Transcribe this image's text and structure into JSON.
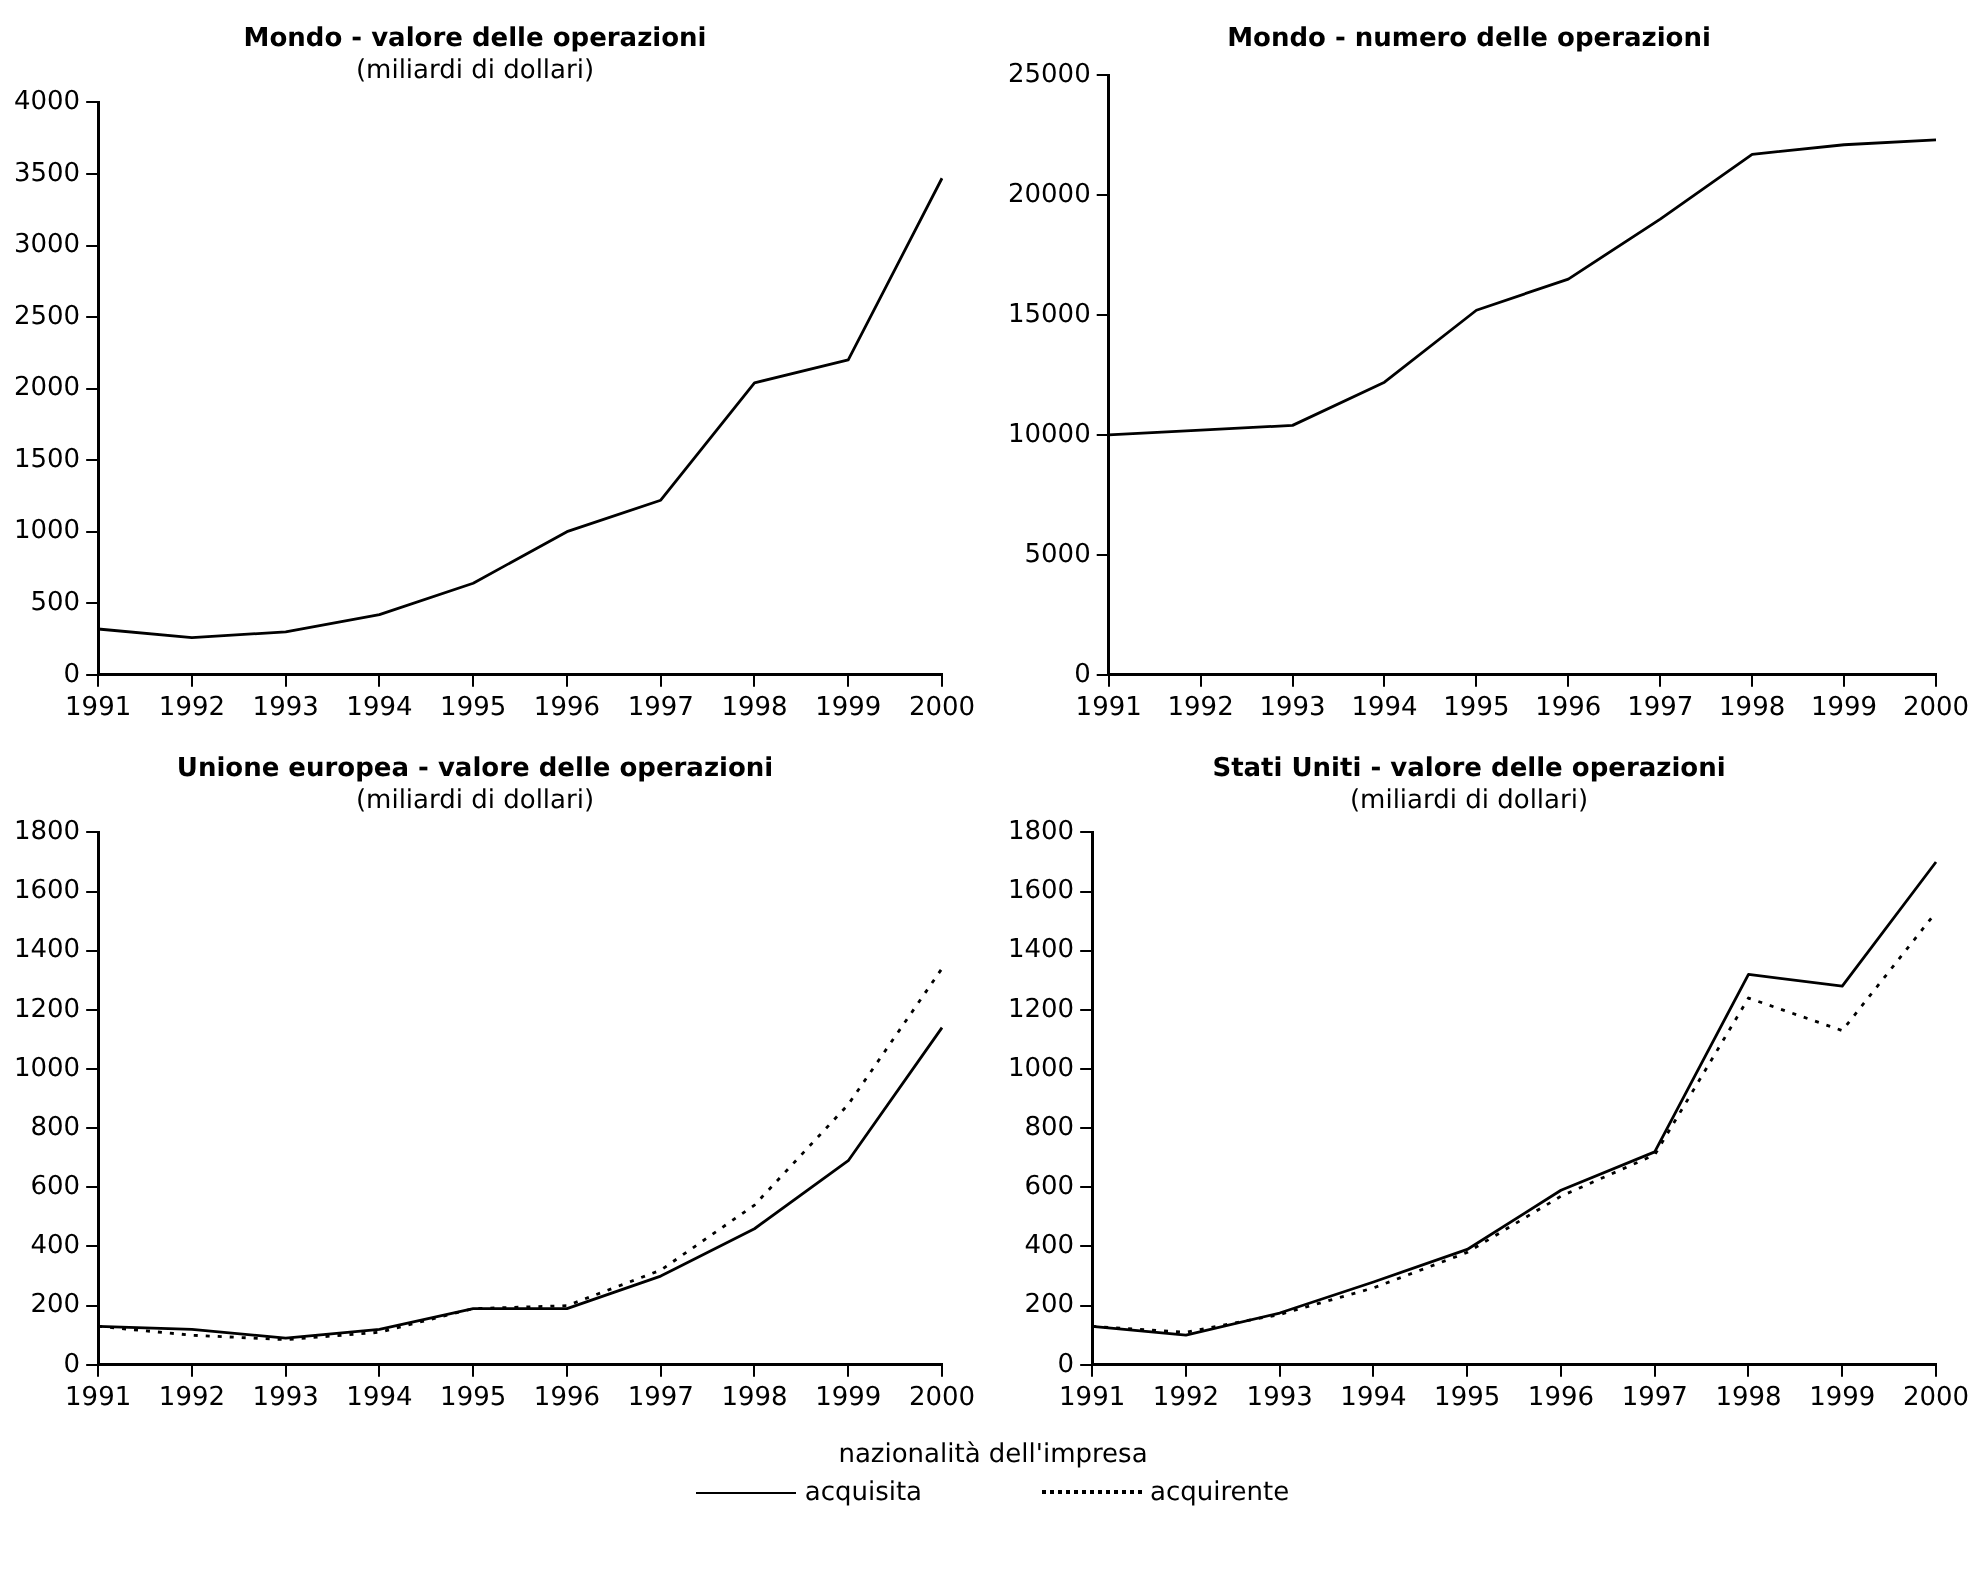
{
  "chart_data": [
    {
      "type": "line",
      "title": "Mondo - valore delle operazioni",
      "subtitle": "(miliardi di dollari)",
      "categories": [
        "1991",
        "1992",
        "1993",
        "1994",
        "1995",
        "1996",
        "1997",
        "1998",
        "1999",
        "2000"
      ],
      "series": [
        {
          "color": "#000000",
          "values": [
            320,
            260,
            300,
            420,
            640,
            1000,
            1220,
            2040,
            2200,
            3470
          ]
        }
      ],
      "ylim": [
        0,
        4000
      ],
      "yticks": [
        0,
        500,
        1000,
        1500,
        2000,
        2500,
        3000,
        3500,
        4000
      ],
      "grid": false,
      "legend": false,
      "marker": "none",
      "line_style": "solid"
    },
    {
      "type": "line",
      "title": "Mondo - numero delle operazioni",
      "categories": [
        "1991",
        "1992",
        "1993",
        "1994",
        "1995",
        "1996",
        "1997",
        "1998",
        "1999",
        "2000"
      ],
      "series": [
        {
          "color": "#000000",
          "values": [
            10000,
            10200,
            10400,
            12200,
            15200,
            16500,
            19000,
            21700,
            22100,
            22300
          ]
        }
      ],
      "ylim": [
        0,
        25000
      ],
      "yticks": [
        0,
        5000,
        10000,
        15000,
        20000,
        25000
      ],
      "grid": false,
      "legend": false,
      "marker": "none",
      "line_style": "solid"
    },
    {
      "type": "line",
      "title": "Unione europea - valore delle operazioni",
      "subtitle": "(miliardi di dollari)",
      "categories": [
        "1991",
        "1992",
        "1993",
        "1994",
        "1995",
        "1996",
        "1997",
        "1998",
        "1999",
        "2000"
      ],
      "series": [
        {
          "color": "#000000",
          "line_style": "solid",
          "values": [
            130,
            120,
            90,
            120,
            190,
            190,
            300,
            460,
            690,
            1140
          ]
        },
        {
          "color": "#000000",
          "line_style": "dotted",
          "values": [
            130,
            100,
            85,
            110,
            190,
            200,
            320,
            540,
            880,
            1340
          ]
        }
      ],
      "ylim": [
        0,
        1800
      ],
      "yticks": [
        0,
        200,
        400,
        600,
        800,
        1000,
        1200,
        1400,
        1600,
        1800
      ],
      "grid": false,
      "legend": false,
      "marker": "none"
    },
    {
      "type": "line",
      "title": "Stati Uniti - valore delle operazioni",
      "subtitle": "(miliardi di dollari)",
      "categories": [
        "1991",
        "1992",
        "1993",
        "1994",
        "1995",
        "1996",
        "1997",
        "1998",
        "1999",
        "2000"
      ],
      "series": [
        {
          "name": "acquisita",
          "color": "#000000",
          "line_style": "solid",
          "values": [
            130,
            100,
            175,
            280,
            390,
            590,
            720,
            1320,
            1280,
            1700
          ]
        },
        {
          "name": "acquirente",
          "color": "#000000",
          "line_style": "dotted",
          "values": [
            130,
            110,
            170,
            260,
            380,
            570,
            710,
            1240,
            1130,
            1530
          ]
        }
      ],
      "ylim": [
        0,
        1800
      ],
      "yticks": [
        0,
        200,
        400,
        600,
        800,
        1000,
        1200,
        1400,
        1600,
        1800
      ],
      "grid": false,
      "legend": "bottom",
      "legend_title": "nazionalità dell'impresa",
      "marker": "none"
    }
  ]
}
